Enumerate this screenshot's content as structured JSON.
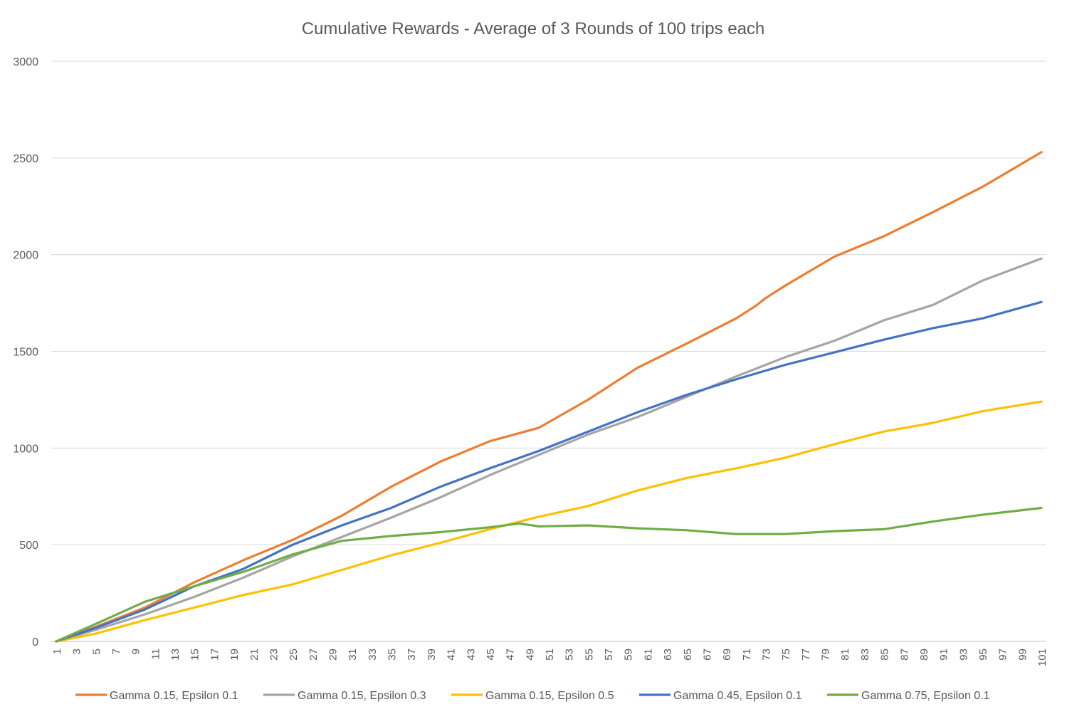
{
  "chart_data": {
    "type": "line",
    "title": "Cumulative Rewards  - Average of 3 Rounds of 100 trips each",
    "xlabel": "",
    "ylabel": "",
    "ylim": [
      0,
      3000
    ],
    "y_ticks": [
      0,
      500,
      1000,
      1500,
      2000,
      2500,
      3000
    ],
    "x_ticks": [
      1,
      3,
      5,
      7,
      9,
      11,
      13,
      15,
      17,
      19,
      21,
      23,
      25,
      27,
      29,
      31,
      33,
      35,
      37,
      39,
      41,
      43,
      45,
      47,
      49,
      51,
      53,
      55,
      57,
      59,
      61,
      63,
      65,
      67,
      69,
      71,
      73,
      75,
      77,
      79,
      81,
      83,
      85,
      87,
      89,
      91,
      93,
      95,
      97,
      99,
      101
    ],
    "x_range": [
      1,
      101
    ],
    "grid": "horizontal",
    "legend_position": "bottom",
    "series": [
      {
        "name": "Gamma 0.15, Epsilon 0.1",
        "color": "#ED7D31",
        "points": [
          [
            1,
            0
          ],
          [
            5,
            75
          ],
          [
            10,
            175
          ],
          [
            15,
            305
          ],
          [
            20,
            420
          ],
          [
            25,
            525
          ],
          [
            30,
            650
          ],
          [
            35,
            800
          ],
          [
            40,
            930
          ],
          [
            45,
            1035
          ],
          [
            50,
            1105
          ],
          [
            55,
            1250
          ],
          [
            60,
            1415
          ],
          [
            65,
            1540
          ],
          [
            70,
            1670
          ],
          [
            72,
            1735
          ],
          [
            73,
            1775
          ],
          [
            75,
            1840
          ],
          [
            80,
            1990
          ],
          [
            85,
            2095
          ],
          [
            90,
            2220
          ],
          [
            95,
            2350
          ],
          [
            101,
            2530
          ]
        ]
      },
      {
        "name": "Gamma 0.15, Epsilon 0.3",
        "color": "#A5A5A5",
        "points": [
          [
            1,
            0
          ],
          [
            5,
            60
          ],
          [
            10,
            140
          ],
          [
            15,
            230
          ],
          [
            20,
            330
          ],
          [
            25,
            440
          ],
          [
            30,
            540
          ],
          [
            35,
            640
          ],
          [
            40,
            745
          ],
          [
            45,
            860
          ],
          [
            50,
            965
          ],
          [
            55,
            1070
          ],
          [
            60,
            1160
          ],
          [
            65,
            1265
          ],
          [
            70,
            1370
          ],
          [
            75,
            1470
          ],
          [
            80,
            1555
          ],
          [
            85,
            1660
          ],
          [
            90,
            1740
          ],
          [
            95,
            1865
          ],
          [
            101,
            1980
          ]
        ]
      },
      {
        "name": "Gamma 0.15, Epsilon 0.5",
        "color": "#FFC000",
        "points": [
          [
            1,
            0
          ],
          [
            5,
            40
          ],
          [
            10,
            110
          ],
          [
            15,
            175
          ],
          [
            20,
            240
          ],
          [
            25,
            295
          ],
          [
            30,
            370
          ],
          [
            35,
            445
          ],
          [
            40,
            510
          ],
          [
            45,
            580
          ],
          [
            50,
            645
          ],
          [
            55,
            700
          ],
          [
            60,
            780
          ],
          [
            65,
            845
          ],
          [
            70,
            895
          ],
          [
            75,
            950
          ],
          [
            80,
            1020
          ],
          [
            85,
            1085
          ],
          [
            90,
            1130
          ],
          [
            95,
            1190
          ],
          [
            101,
            1240
          ]
        ]
      },
      {
        "name": "Gamma 0.45, Epsilon 0.1",
        "color": "#4472C4",
        "points": [
          [
            1,
            0
          ],
          [
            5,
            70
          ],
          [
            10,
            165
          ],
          [
            15,
            285
          ],
          [
            20,
            375
          ],
          [
            25,
            500
          ],
          [
            30,
            600
          ],
          [
            35,
            690
          ],
          [
            40,
            800
          ],
          [
            45,
            895
          ],
          [
            50,
            985
          ],
          [
            55,
            1085
          ],
          [
            60,
            1185
          ],
          [
            65,
            1275
          ],
          [
            70,
            1355
          ],
          [
            75,
            1430
          ],
          [
            80,
            1495
          ],
          [
            85,
            1560
          ],
          [
            90,
            1620
          ],
          [
            95,
            1670
          ],
          [
            101,
            1755
          ]
        ]
      },
      {
        "name": "Gamma 0.75, Epsilon 0.1",
        "color": "#70AD47",
        "points": [
          [
            1,
            0
          ],
          [
            5,
            90
          ],
          [
            10,
            205
          ],
          [
            15,
            285
          ],
          [
            20,
            360
          ],
          [
            25,
            450
          ],
          [
            30,
            520
          ],
          [
            35,
            545
          ],
          [
            40,
            565
          ],
          [
            45,
            590
          ],
          [
            48,
            610
          ],
          [
            50,
            595
          ],
          [
            55,
            600
          ],
          [
            60,
            585
          ],
          [
            65,
            575
          ],
          [
            70,
            555
          ],
          [
            75,
            555
          ],
          [
            80,
            570
          ],
          [
            85,
            580
          ],
          [
            90,
            620
          ],
          [
            95,
            655
          ],
          [
            101,
            690
          ]
        ]
      }
    ]
  }
}
